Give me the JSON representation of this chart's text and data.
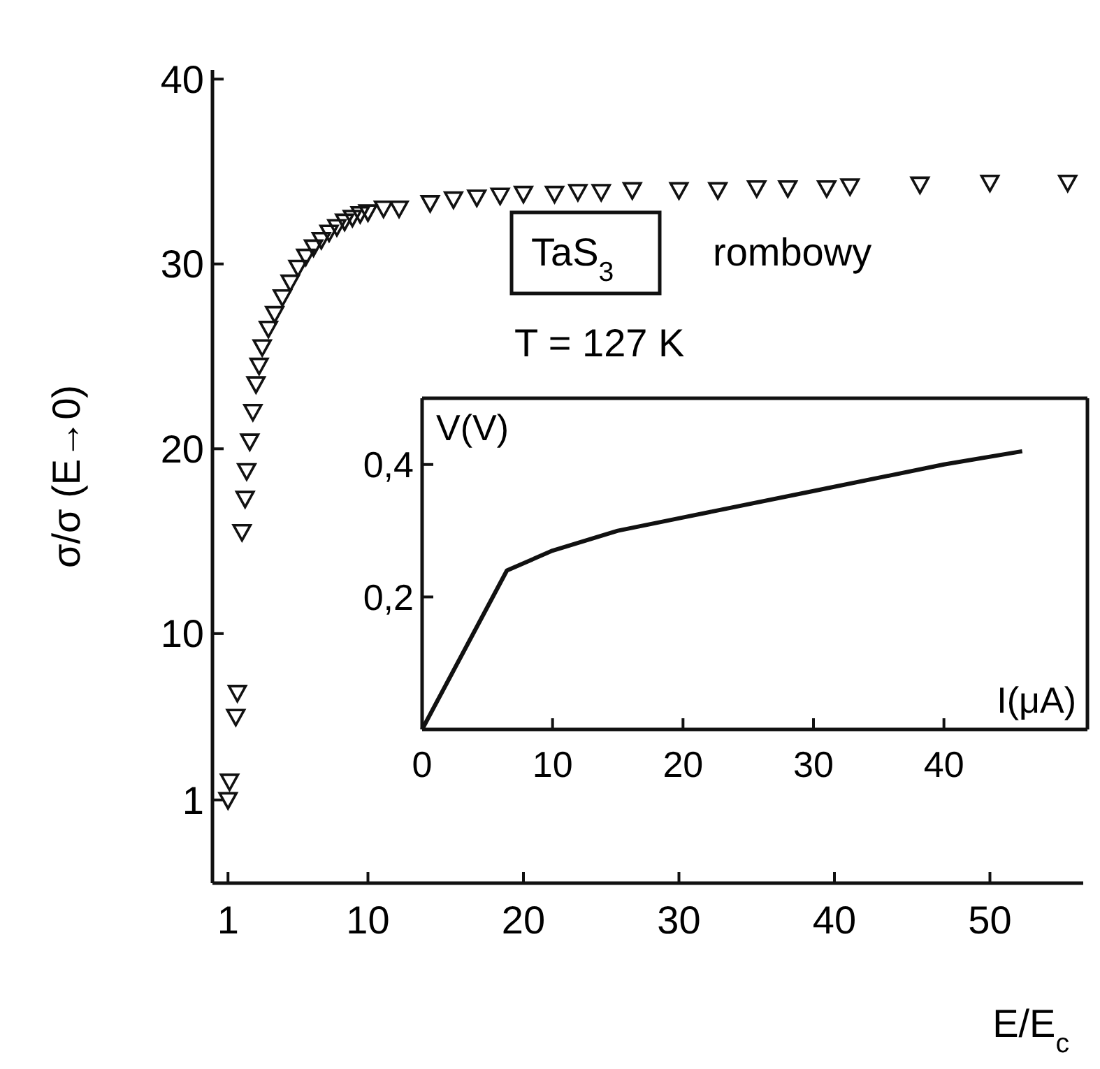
{
  "chart_data": [
    {
      "type": "scatter",
      "ylabel": "σ/σ (E→0)",
      "xlabel": "E/E$_{c}$",
      "xlim": [
        0,
        56
      ],
      "ylim": [
        -3.5,
        40.5
      ],
      "xticks": [
        1,
        10,
        20,
        30,
        40,
        50
      ],
      "yticks": [
        1,
        10,
        20,
        30,
        40
      ],
      "marker": "triangle",
      "grid": false,
      "annotations": [
        "TaS$_{3}$",
        "rombowy",
        "T = 127 K"
      ],
      "series": [
        {
          "color": "#111111",
          "x": [
            1.0,
            1.1,
            1.5,
            1.6,
            1.9,
            2.1,
            2.2,
            2.4,
            2.6,
            2.8,
            3.0,
            3.2,
            3.6,
            4,
            4.5,
            5,
            5.5,
            6,
            6.5,
            7,
            7.5,
            8,
            8.5,
            9,
            9.5,
            10,
            11,
            12,
            14,
            15.5,
            17,
            18.5,
            20,
            22,
            23.5,
            25,
            27,
            30,
            32.5,
            35,
            37,
            39.5,
            41,
            45.5,
            50,
            55
          ],
          "values": [
            1.0,
            2.0,
            5.5,
            6.8,
            15.5,
            17.3,
            18.8,
            20.4,
            22,
            23.5,
            24.5,
            25.5,
            26.5,
            27.3,
            28.2,
            29,
            29.8,
            30.4,
            30.9,
            31.3,
            31.7,
            32,
            32.3,
            32.5,
            32.7,
            32.8,
            33,
            33,
            33.3,
            33.5,
            33.6,
            33.7,
            33.8,
            33.8,
            33.9,
            33.9,
            34,
            34,
            34,
            34.1,
            34.1,
            34.1,
            34.2,
            34.3,
            34.4,
            34.4
          ]
        }
      ]
    },
    {
      "type": "line",
      "ylabel": "V(V)",
      "xlabel": "I(μA)",
      "xlim": [
        0,
        51
      ],
      "ylim": [
        0,
        0.5
      ],
      "xticks": [
        0,
        10,
        20,
        30,
        40
      ],
      "yticks": [
        {
          "value": 0.2,
          "label": "0,2"
        },
        {
          "value": 0.4,
          "label": "0,4"
        }
      ],
      "grid": false,
      "marker": "none",
      "series": [
        {
          "color": "#111111",
          "x": [
            0,
            6.5,
            10,
            15,
            20,
            30,
            40,
            46
          ],
          "values": [
            0,
            0.24,
            0.27,
            0.3,
            0.32,
            0.36,
            0.4,
            0.42
          ]
        }
      ]
    }
  ]
}
